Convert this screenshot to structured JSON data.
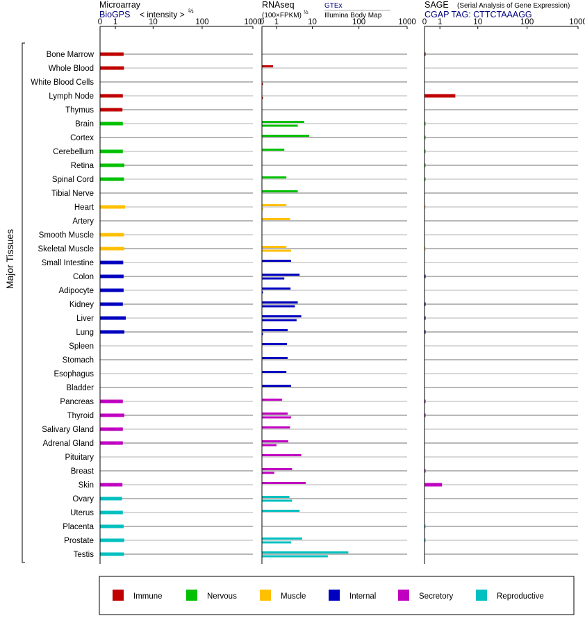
{
  "header": {
    "microarray_title": "Microarray",
    "microarray_source": "BioGPS",
    "microarray_unit": "< intensity >",
    "microarray_unit_exp": "⅔",
    "rnaseq_title": "RNAseq",
    "rnaseq_unit": "(100×FPKM)",
    "rnaseq_unit_exp": "½",
    "rnaseq_source1": "GTEx",
    "rnaseq_source2": "Illumina Body Map",
    "sage_title": "SAGE",
    "sage_subtitle": "(Serial Analysis of Gene Expression)",
    "sage_tag": "CGAP TAG: CTTCTAAAGG"
  },
  "ylabel": "Major Tissues",
  "colors": {
    "Immune": "#c00000",
    "Nervous": "#00c000",
    "Muscle": "#ffc000",
    "Internal": "#0000c0",
    "Secretory": "#c000c0",
    "Reproductive": "#00c0c0"
  },
  "chart_data": {
    "type": "bar",
    "x_scale": "log",
    "x_ticks": [
      "0",
      "1",
      "10",
      "100",
      "1000"
    ],
    "xlim": [
      0,
      1000
    ],
    "legend_position": "bottom",
    "legend": [
      "Immune",
      "Nervous",
      "Muscle",
      "Internal",
      "Secretory",
      "Reproductive"
    ],
    "tissues": [
      {
        "name": "Bone Marrow",
        "group": "Immune",
        "microarray": 1.9,
        "gtex": null,
        "ibm": null,
        "sage": 0.05
      },
      {
        "name": "Whole Blood",
        "group": "Immune",
        "microarray": 1.95,
        "gtex": 0.7,
        "ibm": null,
        "sage": null
      },
      {
        "name": "White Blood Cells",
        "group": "Immune",
        "microarray": null,
        "gtex": null,
        "ibm": 0.04,
        "sage": null
      },
      {
        "name": "Lymph Node",
        "group": "Immune",
        "microarray": 1.8,
        "gtex": null,
        "ibm": 0.03,
        "sage": 3.0
      },
      {
        "name": "Thymus",
        "group": "Immune",
        "microarray": 1.75,
        "gtex": null,
        "ibm": null,
        "sage": null
      },
      {
        "name": "Brain",
        "group": "Nervous",
        "microarray": 1.8,
        "gtex": 6.5,
        "ibm": 4.5,
        "sage": 0.02
      },
      {
        "name": "Cortex",
        "group": "Nervous",
        "microarray": null,
        "gtex": 8.5,
        "ibm": null,
        "sage": 0.02
      },
      {
        "name": "Cerebellum",
        "group": "Nervous",
        "microarray": 1.8,
        "gtex": 1.9,
        "ibm": null,
        "sage": 0.02
      },
      {
        "name": "Retina",
        "group": "Nervous",
        "microarray": 2.0,
        "gtex": null,
        "ibm": null,
        "sage": 0.02
      },
      {
        "name": "Spinal Cord",
        "group": "Nervous",
        "microarray": 1.95,
        "gtex": 2.2,
        "ibm": null,
        "sage": 0.02
      },
      {
        "name": "Tibial Nerve",
        "group": "Nervous",
        "microarray": null,
        "gtex": 4.5,
        "ibm": null,
        "sage": null
      },
      {
        "name": "Heart",
        "group": "Muscle",
        "microarray": 2.1,
        "gtex": 2.2,
        "ibm": 0.03,
        "sage": 0.02
      },
      {
        "name": "Artery",
        "group": "Muscle",
        "microarray": null,
        "gtex": 2.8,
        "ibm": null,
        "sage": null
      },
      {
        "name": "Smooth Muscle",
        "group": "Muscle",
        "microarray": 1.95,
        "gtex": null,
        "ibm": null,
        "sage": null
      },
      {
        "name": "Skeletal Muscle",
        "group": "Muscle",
        "microarray": 2.0,
        "gtex": 2.2,
        "ibm": 3.0,
        "sage": 0.02
      },
      {
        "name": "Small Intestine",
        "group": "Internal",
        "microarray": 1.85,
        "gtex": 3.0,
        "ibm": null,
        "sage": null
      },
      {
        "name": "Colon",
        "group": "Internal",
        "microarray": 1.9,
        "gtex": 5.0,
        "ibm": 1.9,
        "sage": 0.05
      },
      {
        "name": "Adipocyte",
        "group": "Internal",
        "microarray": 1.9,
        "gtex": 2.9,
        "ibm": 0.03,
        "sage": null
      },
      {
        "name": "Kidney",
        "group": "Internal",
        "microarray": 1.8,
        "gtex": 4.5,
        "ibm": 3.8,
        "sage": 0.05
      },
      {
        "name": "Liver",
        "group": "Internal",
        "microarray": 2.2,
        "gtex": 5.5,
        "ibm": 4.2,
        "sage": 0.05
      },
      {
        "name": "Lung",
        "group": "Internal",
        "microarray": 2.0,
        "gtex": 2.4,
        "ibm": 0.04,
        "sage": 0.05
      },
      {
        "name": "Spleen",
        "group": "Internal",
        "microarray": null,
        "gtex": 2.3,
        "ibm": null,
        "sage": null
      },
      {
        "name": "Stomach",
        "group": "Internal",
        "microarray": null,
        "gtex": 2.4,
        "ibm": null,
        "sage": null
      },
      {
        "name": "Esophagus",
        "group": "Internal",
        "microarray": null,
        "gtex": 2.2,
        "ibm": null,
        "sage": null
      },
      {
        "name": "Bladder",
        "group": "Internal",
        "microarray": null,
        "gtex": 3.0,
        "ibm": null,
        "sage": null
      },
      {
        "name": "Pancreas",
        "group": "Secretory",
        "microarray": 1.8,
        "gtex": 1.6,
        "ibm": null,
        "sage": 0.05
      },
      {
        "name": "Thyroid",
        "group": "Secretory",
        "microarray": 2.0,
        "gtex": 2.4,
        "ibm": 3.0,
        "sage": 0.05
      },
      {
        "name": "Salivary Gland",
        "group": "Secretory",
        "microarray": 1.8,
        "gtex": 2.8,
        "ibm": null,
        "sage": null
      },
      {
        "name": "Adrenal Gland",
        "group": "Secretory",
        "microarray": 1.8,
        "gtex": 2.5,
        "ibm": 1.0,
        "sage": null
      },
      {
        "name": "Pituitary",
        "group": "Secretory",
        "microarray": null,
        "gtex": 5.5,
        "ibm": null,
        "sage": null
      },
      {
        "name": "Breast",
        "group": "Secretory",
        "microarray": null,
        "gtex": 3.2,
        "ibm": 0.8,
        "sage": 0.05
      },
      {
        "name": "Skin",
        "group": "Secretory",
        "microarray": 1.75,
        "gtex": 7.0,
        "ibm": null,
        "sage": 1.2
      },
      {
        "name": "Ovary",
        "group": "Reproductive",
        "microarray": 1.7,
        "gtex": 2.7,
        "ibm": 3.2,
        "sage": null
      },
      {
        "name": "Uterus",
        "group": "Reproductive",
        "microarray": 1.8,
        "gtex": 5.0,
        "ibm": null,
        "sage": null
      },
      {
        "name": "Placenta",
        "group": "Reproductive",
        "microarray": 1.9,
        "gtex": null,
        "ibm": null,
        "sage": 0.02
      },
      {
        "name": "Prostate",
        "group": "Reproductive",
        "microarray": 2.0,
        "gtex": 5.8,
        "ibm": 3.0,
        "sage": 0.02
      },
      {
        "name": "Testis",
        "group": "Reproductive",
        "microarray": 1.95,
        "gtex": 60,
        "ibm": 22,
        "sage": null
      }
    ]
  }
}
